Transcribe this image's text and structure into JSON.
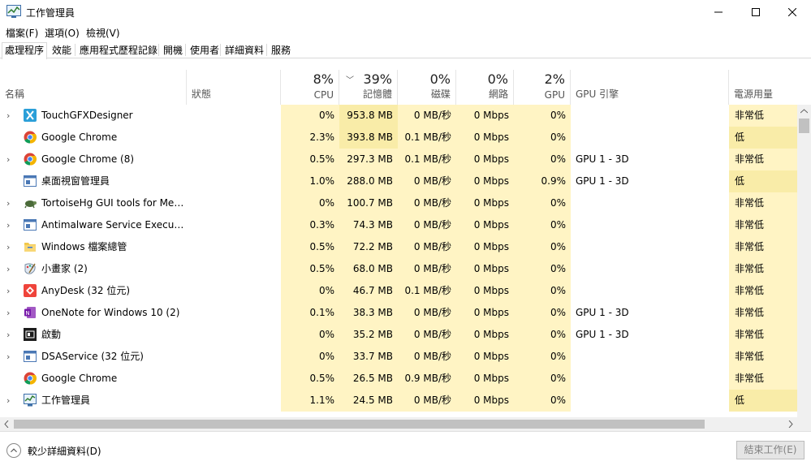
{
  "window": {
    "title": "工作管理員",
    "icon": "task-manager-icon"
  },
  "menu": [
    "檔案(F)",
    "選項(O)",
    "檢視(V)"
  ],
  "tabs": [
    "處理程序",
    "效能",
    "應用程式歷程記錄",
    "開機",
    "使用者",
    "詳細資料",
    "服務"
  ],
  "columns": {
    "name": "名稱",
    "status": "狀態",
    "cpu": {
      "pct": "8%",
      "label": "CPU"
    },
    "memory": {
      "pct": "39%",
      "label": "記憶體"
    },
    "disk": {
      "pct": "0%",
      "label": "磁碟"
    },
    "network": {
      "pct": "0%",
      "label": "網路"
    },
    "gpu": {
      "pct": "2%",
      "label": "GPU"
    },
    "gpu_engine": "GPU 引擎",
    "power": "電源用量"
  },
  "rows": [
    {
      "name": "TouchGFXDesigner",
      "icon": "touchgfx-icon",
      "cpu": "0%",
      "mem": "953.8 MB",
      "disk": "0 MB/秒",
      "net": "0 Mbps",
      "gpu": "0%",
      "engine": "",
      "power": "非常低"
    },
    {
      "name": "Google Chrome",
      "icon": "chrome-icon",
      "cpu": "2.3%",
      "mem": "393.8 MB",
      "disk": "0.1 MB/秒",
      "net": "0 Mbps",
      "gpu": "0%",
      "engine": "",
      "power": "低"
    },
    {
      "name": "Google Chrome (8)",
      "icon": "chrome-icon",
      "cpu": "0.5%",
      "mem": "297.3 MB",
      "disk": "0.1 MB/秒",
      "net": "0 Mbps",
      "gpu": "0%",
      "engine": "GPU 1 - 3D",
      "power": "非常低"
    },
    {
      "name": "桌面視窗管理員",
      "icon": "window-manager-icon",
      "cpu": "1.0%",
      "mem": "288.0 MB",
      "disk": "0 MB/秒",
      "net": "0 Mbps",
      "gpu": "0.9%",
      "engine": "GPU 1 - 3D",
      "power": "低"
    },
    {
      "name": "TortoiseHg GUI tools for Merc...",
      "icon": "tortoise-icon",
      "cpu": "0%",
      "mem": "100.7 MB",
      "disk": "0 MB/秒",
      "net": "0 Mbps",
      "gpu": "0%",
      "engine": "",
      "power": "非常低"
    },
    {
      "name": "Antimalware Service Executable",
      "icon": "service-window-icon",
      "cpu": "0.3%",
      "mem": "74.3 MB",
      "disk": "0 MB/秒",
      "net": "0 Mbps",
      "gpu": "0%",
      "engine": "",
      "power": "非常低"
    },
    {
      "name": "Windows 檔案總管",
      "icon": "folder-icon",
      "cpu": "0.5%",
      "mem": "72.2 MB",
      "disk": "0 MB/秒",
      "net": "0 Mbps",
      "gpu": "0%",
      "engine": "",
      "power": "非常低"
    },
    {
      "name": "小畫家 (2)",
      "icon": "paint-icon",
      "cpu": "0.5%",
      "mem": "68.0 MB",
      "disk": "0 MB/秒",
      "net": "0 Mbps",
      "gpu": "0%",
      "engine": "",
      "power": "非常低"
    },
    {
      "name": "AnyDesk (32 位元)",
      "icon": "anydesk-icon",
      "cpu": "0%",
      "mem": "46.7 MB",
      "disk": "0.1 MB/秒",
      "net": "0 Mbps",
      "gpu": "0%",
      "engine": "",
      "power": "非常低"
    },
    {
      "name": "OneNote for Windows 10 (2)",
      "icon": "onenote-icon",
      "cpu": "0.1%",
      "mem": "38.3 MB",
      "disk": "0 MB/秒",
      "net": "0 Mbps",
      "gpu": "0%",
      "engine": "GPU 1 - 3D",
      "power": "非常低"
    },
    {
      "name": "啟動",
      "icon": "start-icon",
      "cpu": "0%",
      "mem": "35.2 MB",
      "disk": "0 MB/秒",
      "net": "0 Mbps",
      "gpu": "0%",
      "engine": "GPU 1 - 3D",
      "power": "非常低"
    },
    {
      "name": "DSAService (32 位元)",
      "icon": "service-window-icon",
      "cpu": "0%",
      "mem": "33.7 MB",
      "disk": "0 MB/秒",
      "net": "0 Mbps",
      "gpu": "0%",
      "engine": "",
      "power": "非常低"
    },
    {
      "name": "Google Chrome",
      "icon": "chrome-icon",
      "cpu": "0.5%",
      "mem": "26.5 MB",
      "disk": "0.9 MB/秒",
      "net": "0 Mbps",
      "gpu": "0%",
      "engine": "",
      "power": "非常低"
    },
    {
      "name": "工作管理員",
      "icon": "task-manager-icon",
      "cpu": "1.1%",
      "mem": "24.5 MB",
      "disk": "0 MB/秒",
      "net": "0 Mbps",
      "gpu": "0%",
      "engine": "",
      "power": "低"
    }
  ],
  "footer": {
    "fewer_details": "較少詳細資料(D)",
    "end_task": "結束工作(E)"
  },
  "colors": {
    "heat_light": "#fff4c4",
    "heat_medium": "#f9eca8",
    "selected_tab_border": "#d9d9d9"
  }
}
